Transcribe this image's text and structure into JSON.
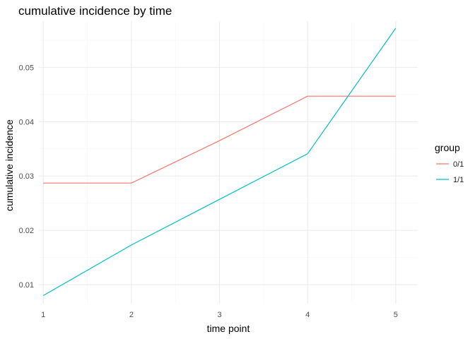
{
  "chart_data": {
    "type": "line",
    "title": "cumulative incidence by time",
    "xlabel": "time point",
    "ylabel": "cumulative incidence",
    "x": [
      1,
      2,
      3,
      4,
      5
    ],
    "xlim": [
      0.95,
      5.25
    ],
    "ylim": [
      0.0065,
      0.0585
    ],
    "x_ticks": [
      "1",
      "2",
      "3",
      "4",
      "5"
    ],
    "y_ticks": [
      "0.01",
      "0.02",
      "0.03",
      "0.04",
      "0.05"
    ],
    "y_tick_values": [
      0.01,
      0.02,
      0.03,
      0.04,
      0.05
    ],
    "grid": true,
    "legend": {
      "title": "group",
      "placement": "right"
    },
    "series": [
      {
        "name": "0/1",
        "color": "#F8766D",
        "values": [
          0.0287,
          0.0287,
          0.0365,
          0.0447,
          0.0447
        ]
      },
      {
        "name": "1/1",
        "color": "#00BFC4",
        "values": [
          0.008,
          0.0173,
          0.0257,
          0.0341,
          0.0572
        ]
      }
    ]
  }
}
